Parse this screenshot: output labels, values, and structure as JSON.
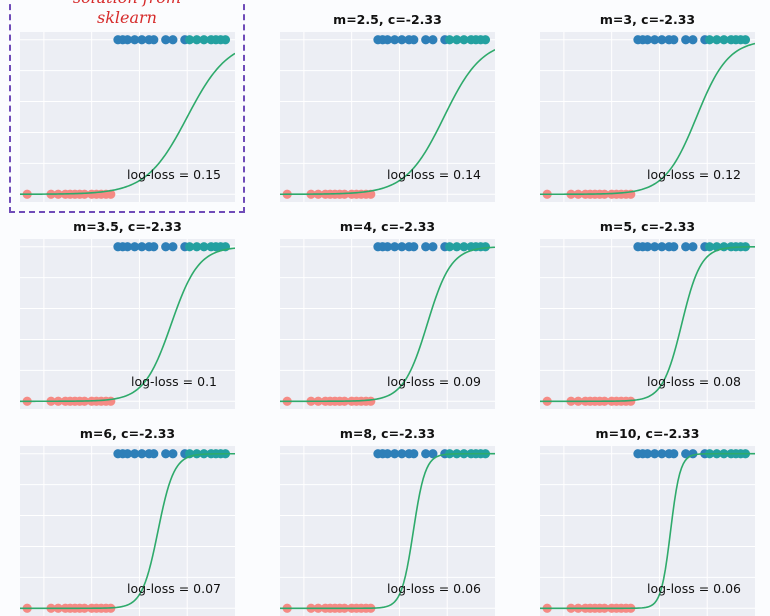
{
  "annotation": {
    "line1": "solution from",
    "line2": "sklearn",
    "colors": {
      "text": "#d62b2b",
      "box": "#6f4bb8"
    }
  },
  "colors": {
    "background": "#fbfcfe",
    "axes_bg": "#eceef4",
    "grid": "#ffffff",
    "curve": "#2eaa6b",
    "class0": "#f58a84",
    "class1_a": "#2e7fb8",
    "class1_b": "#23a0a0"
  },
  "chart_data": {
    "type": "scatter",
    "shared": {
      "xlim": [
        -2.5,
        2.0
      ],
      "ylim": [
        -0.05,
        1.05
      ],
      "grid": true,
      "class0_x": [
        -2.35,
        -1.85,
        -1.7,
        -1.55,
        -1.45,
        -1.35,
        -1.25,
        -1.15,
        -1.0,
        -0.9,
        -0.8,
        -0.7,
        -0.6
      ],
      "class0_y": 0,
      "class1_x": [
        -0.45,
        -0.35,
        -0.25,
        -0.1,
        0.05,
        0.2,
        0.3,
        0.55,
        0.7,
        0.95,
        1.05,
        1.2,
        1.35,
        1.5,
        1.6,
        1.7,
        1.8
      ],
      "class1_y": 1,
      "curve": "sigmoid(m*x + c)"
    },
    "panels": [
      {
        "title": "",
        "m": 2.33,
        "c": -2.33,
        "logloss": "log-loss = 0.15",
        "highlighted": true
      },
      {
        "title": "m=2.5, c=-2.33",
        "m": 2.5,
        "c": -2.33,
        "logloss": "log-loss = 0.14"
      },
      {
        "title": "m=3, c=-2.33",
        "m": 3,
        "c": -2.33,
        "logloss": "log-loss = 0.12"
      },
      {
        "title": "m=3.5, c=-2.33",
        "m": 3.5,
        "c": -2.33,
        "logloss": "log-loss = 0.1"
      },
      {
        "title": "m=4, c=-2.33",
        "m": 4,
        "c": -2.33,
        "logloss": "log-loss = 0.09"
      },
      {
        "title": "m=5, c=-2.33",
        "m": 5,
        "c": -2.33,
        "logloss": "log-loss = 0.08"
      },
      {
        "title": "m=6, c=-2.33",
        "m": 6,
        "c": -2.33,
        "logloss": "log-loss = 0.07"
      },
      {
        "title": "m=8, c=-2.33",
        "m": 8,
        "c": -2.33,
        "logloss": "log-loss = 0.06"
      },
      {
        "title": "m=10, c=-2.33",
        "m": 10,
        "c": -2.33,
        "logloss": "log-loss = 0.06"
      }
    ]
  }
}
